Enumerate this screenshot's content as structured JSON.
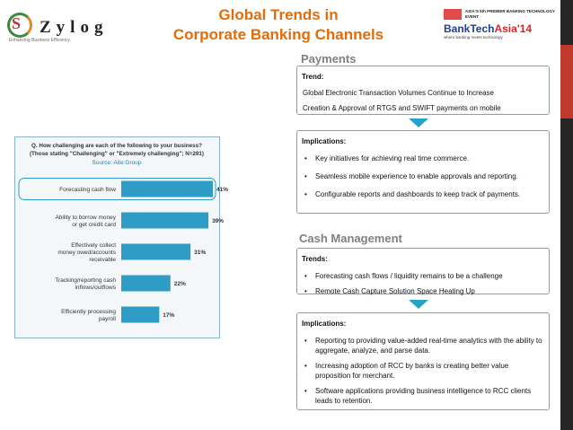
{
  "logo": {
    "brand": "Zylog",
    "tagline": "Enhancing Business Efficiency"
  },
  "header": {
    "title_line1": "Global Trends in",
    "title_line2": "Corporate Banking Channels"
  },
  "event": {
    "supertitle": "ASIA'S 5th PREMIER BANKING TECHNOLOGY EVENT",
    "name_a": "BankTech",
    "name_b": "Asia'14",
    "tagline": "where banking meets technology"
  },
  "payments": {
    "heading": "Payments",
    "trend_head": "Trend:",
    "trend_lines": [
      "Global Electronic Transaction Volumes Continue to Increase",
      "Creation & Approval of RTGS and SWIFT payments on mobile"
    ],
    "impl_head": "Implications:",
    "impl_items": [
      "Key initiatives for achieving real time commerce.",
      "Seamless mobile experience to enable approvals and reporting.",
      "Configurable reports and dashboards to keep track of payments."
    ]
  },
  "cash": {
    "heading": "Cash Management",
    "trend_head": "Trends:",
    "trend_items": [
      "Forecasting cash flows / liquidity remains to be a challenge",
      "Remote Cash Capture Solution Space Heating Up"
    ],
    "impl_head": "Implications:",
    "impl_items": [
      "Reporting to providing value-added real-time analytics with the ability to aggregate, analyze, and parse data.",
      "Increasing adoption of RCC by banks is creating better value proposition for merchant.",
      "Software applications providing business intelligence to RCC clients leads to retention."
    ]
  },
  "chart_data": {
    "type": "bar",
    "orientation": "horizontal",
    "title": "Q. How challenging are each of the following to your business? (Those stating \"Challenging\" or \"Extremely challenging\"; N=291)",
    "source": "Source: Aite Group",
    "categories": [
      "Forecasting cash flow",
      "Ability to borrow money or get credit card",
      "Effectively collect money owed/accounts receivable",
      "Tracking/reporting cash inflows/outflows",
      "Efficiently processing payroll"
    ],
    "values": [
      41,
      39,
      31,
      22,
      17
    ],
    "value_labels": [
      "41%",
      "39%",
      "31%",
      "22%",
      "17%"
    ],
    "highlighted_category": "Forecasting cash flow",
    "xlim": [
      0,
      45
    ],
    "bar_color": "#2e9cc4",
    "grid": false
  }
}
